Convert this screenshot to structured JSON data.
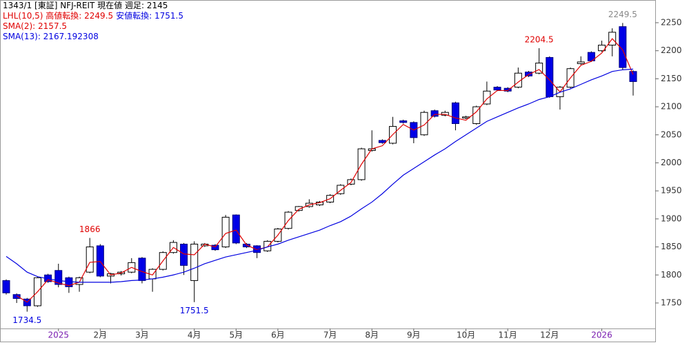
{
  "chart_data": {
    "type": "candlestick",
    "header": [
      {
        "text": "1343/1 [東証] NFJ-REIT  現在値 週足: 2145",
        "color": "#000000"
      },
      {
        "text": "LHL(10,5) 高値転換: 2249.5",
        "color": "#e00000"
      },
      {
        "text": "安値転換: 1751.5",
        "color": "#0000e0"
      },
      {
        "text": "SMA(2): 2157.5",
        "color": "#e00000"
      },
      {
        "text": "SMA(13): 2167.192308",
        "color": "#0000e0"
      }
    ],
    "categories": [
      null,
      null,
      null,
      null,
      null,
      "2025",
      null,
      null,
      null,
      "2月",
      null,
      null,
      null,
      "3月",
      null,
      null,
      null,
      null,
      "4月",
      null,
      null,
      null,
      "5月",
      null,
      null,
      null,
      "6月",
      null,
      null,
      null,
      null,
      "7月",
      null,
      null,
      null,
      "8月",
      null,
      null,
      null,
      "9月",
      null,
      null,
      null,
      null,
      "10月",
      null,
      null,
      null,
      "11月",
      null,
      null,
      null,
      "12月",
      null,
      null,
      null,
      null,
      "2026",
      null,
      null,
      null
    ],
    "open": [
      1790,
      1765,
      1757,
      1745,
      1800,
      1808,
      1795,
      1783,
      1805,
      1852,
      1798,
      1802,
      1805,
      1830,
      1793,
      1810,
      1840,
      1855,
      1790,
      1852,
      1853,
      1850,
      1907,
      1855,
      1852,
      1843,
      1860,
      1883,
      1915,
      1922,
      1925,
      1930,
      1945,
      1962,
      1970,
      2022,
      2040,
      2035,
      2075,
      2072,
      2050,
      2093,
      2085,
      2107,
      2080,
      2070,
      2105,
      2135,
      2133,
      2135,
      2162,
      2160,
      2188,
      2118,
      2135,
      2177,
      2197,
      2200,
      2210,
      2243,
      2163
    ],
    "high": [
      1792,
      1767,
      1759,
      1797,
      1802,
      1820,
      1797,
      1797,
      1866,
      1855,
      1804,
      1807,
      1830,
      1832,
      1812,
      1842,
      1862,
      1857,
      1860,
      1857,
      1855,
      1907,
      1908,
      1857,
      1853,
      1862,
      1884,
      1914,
      1923,
      1935,
      1932,
      1944,
      1962,
      1972,
      2027,
      2058,
      2042,
      2082,
      2077,
      2074,
      2093,
      2095,
      2093,
      2109,
      2084,
      2102,
      2145,
      2137,
      2135,
      2170,
      2164,
      2204.5,
      2190,
      2137,
      2170,
      2190,
      2199,
      2218,
      2240,
      2249.5,
      2165
    ],
    "low": [
      1765,
      1750,
      1734.5,
      1743,
      1786,
      1778,
      1768,
      1770,
      1803,
      1796,
      1785,
      1799,
      1803,
      1785,
      1770,
      1808,
      1838,
      1800,
      1751.5,
      1850,
      1843,
      1848,
      1855,
      1848,
      1830,
      1841,
      1858,
      1881,
      1913,
      1920,
      1923,
      1928,
      1943,
      1960,
      1968,
      2020,
      2034,
      2033,
      2070,
      2035,
      2048,
      2081,
      2083,
      2058,
      2078,
      2068,
      2103,
      2128,
      2126,
      2133,
      2153,
      2158,
      2116,
      2095,
      2133,
      2175,
      2180,
      2198,
      2190,
      2166,
      2120
    ],
    "close": [
      1768,
      1758,
      1745,
      1795,
      1788,
      1783,
      1779,
      1795,
      1850,
      1798,
      1802,
      1805,
      1822,
      1790,
      1810,
      1840,
      1858,
      1817,
      1855,
      1855,
      1845,
      1903,
      1857,
      1850,
      1840,
      1860,
      1882,
      1912,
      1922,
      1928,
      1930,
      1942,
      1960,
      1970,
      2025,
      2025,
      2036,
      2065,
      2072,
      2045,
      2090,
      2083,
      2090,
      2070,
      2082,
      2100,
      2128,
      2130,
      2128,
      2160,
      2155,
      2178,
      2118,
      2135,
      2168,
      2180,
      2182,
      2210,
      2233,
      2170,
      2145
    ],
    "series": [
      {
        "name": "SMA(2)",
        "color": "#e00000",
        "values": [
          null,
          1763,
          1751.5,
          1770,
          1791.5,
          1785.5,
          1781,
          1787,
          1822.5,
          1824,
          1800,
          1803.5,
          1813.5,
          1806,
          1800,
          1825,
          1849,
          1837.5,
          1836,
          1855,
          1850,
          1874,
          1880,
          1853.5,
          1845,
          1850,
          1871,
          1897,
          1917,
          1925,
          1929,
          1936,
          1951,
          1965,
          1997.5,
          2025,
          2030.5,
          2050.5,
          2068.5,
          2058.5,
          2067.5,
          2086.5,
          2086.5,
          2080,
          2076,
          2091,
          2114,
          2129,
          2129,
          2144,
          2157.5,
          2166.5,
          2148,
          2126.5,
          2151.5,
          2174,
          2181,
          2196,
          2221.5,
          2201.5,
          2157.5
        ]
      },
      {
        "name": "SMA(13)",
        "color": "#0000e0",
        "values": [
          1833,
          1820,
          1805,
          1797,
          1793,
          1790,
          1788,
          1787,
          1787,
          1787,
          1787,
          1788,
          1790,
          1791,
          1793,
          1796,
          1800,
          1805,
          1812,
          1820,
          1826,
          1832,
          1836,
          1840,
          1844,
          1850,
          1855,
          1862,
          1868,
          1874,
          1880,
          1888,
          1895,
          1905,
          1918,
          1930,
          1945,
          1962,
          1978,
          1990,
          2002,
          2014,
          2025,
          2038,
          2050,
          2062,
          2074,
          2082,
          2090,
          2098,
          2105,
          2113,
          2118,
          2126,
          2132,
          2140,
          2148,
          2155,
          2163,
          2166,
          2167.192308
        ]
      }
    ],
    "high_labels": [
      {
        "value": 1866,
        "color": "#e00000"
      },
      {
        "value": 2204.5,
        "color": "#e00000"
      },
      {
        "value": 2249.5,
        "color": "#888888"
      }
    ],
    "low_labels": [
      {
        "value": 1734.5,
        "color": "#0000e0"
      },
      {
        "value": 1751.5,
        "color": "#0000e0"
      }
    ],
    "up_color": "#ffffff",
    "down_color": "#0000e6",
    "ylim": [
      1704.5,
      2290.5
    ],
    "yticks": [
      1750,
      1800,
      1850,
      1900,
      1950,
      2000,
      2050,
      2100,
      2150,
      2200,
      2250
    ]
  }
}
